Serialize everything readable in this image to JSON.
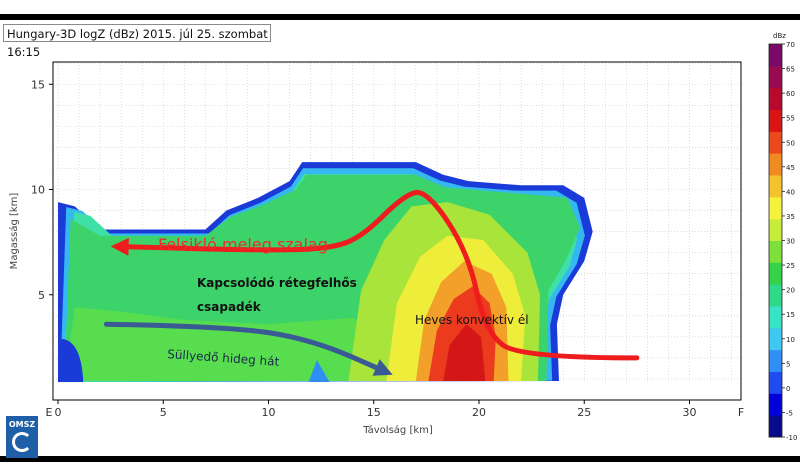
{
  "title": "Hungary-3D logZ (dBz) 2015. júl 25. szombat 16:15",
  "logo_text": "OMSZ",
  "chart_data": {
    "type": "heatmap",
    "xlabel": "Távolság [km]",
    "ylabel": "Magasság [km]",
    "xlim": [
      0,
      32
    ],
    "ylim": [
      0,
      16
    ],
    "x_ticks": [
      "0",
      "5",
      "10",
      "15",
      "20",
      "25",
      "30"
    ],
    "x_end_labels": {
      "left": "E",
      "right": "F"
    },
    "y_ticks": [
      "5",
      "10",
      "15"
    ],
    "grid": true,
    "colorbar": {
      "unit": "dBz",
      "ticks": [
        "-10",
        "-5",
        "0",
        "5",
        "10",
        "15",
        "20",
        "25",
        "30",
        "35",
        "40",
        "45",
        "50",
        "55",
        "60",
        "65",
        "70"
      ],
      "colors": [
        "#0a0a8c",
        "#0000d8",
        "#1e4cf0",
        "#2f8ff5",
        "#3fc8f2",
        "#38e4c8",
        "#2fd98a",
        "#35d34a",
        "#7ee03a",
        "#c8ec3a",
        "#f4f23a",
        "#f4c22c",
        "#f08a22",
        "#ea4a1c",
        "#d81414",
        "#b80a2c",
        "#9a0a50",
        "#7a0a68"
      ]
    },
    "echo_top_km": [
      [
        0,
        9.4
      ],
      [
        0.8,
        9.2
      ],
      [
        2,
        8.1
      ],
      [
        4,
        8.1
      ],
      [
        7,
        8.1
      ],
      [
        8,
        9.0
      ],
      [
        9.5,
        9.6
      ],
      [
        11,
        10.4
      ],
      [
        11.6,
        11.3
      ],
      [
        17,
        11.3
      ],
      [
        18.3,
        10.7
      ],
      [
        19.5,
        10.4
      ],
      [
        22,
        10.2
      ],
      [
        24,
        10.2
      ],
      [
        25,
        9.6
      ],
      [
        25.4,
        8.0
      ],
      [
        25,
        6.6
      ],
      [
        24,
        5.0
      ],
      [
        23.7,
        3.6
      ],
      [
        23.8,
        0.9
      ]
    ],
    "annotations": [
      {
        "text": "Felsikló meleg szalag",
        "color": "#ee2b2b"
      },
      {
        "text": "Kapcsolódó rétegfelhős",
        "color": "#111111"
      },
      {
        "text": "csapadék",
        "color": "#111111"
      },
      {
        "text": "Heves konvektív él",
        "color": "#111111"
      },
      {
        "text": "Süllyedő hideg hát",
        "color": "#1a2a4a"
      }
    ],
    "arrows": [
      {
        "name": "warm-conveyor-arrow",
        "color": "#ee1c1c",
        "points": [
          [
            27.5,
            2.0
          ],
          [
            22,
            2.0
          ],
          [
            20.3,
            3.2
          ],
          [
            19.5,
            7.0
          ],
          [
            17.5,
            10.0
          ],
          [
            16.4,
            9.7
          ],
          [
            14.5,
            7.8
          ],
          [
            13,
            7.2
          ],
          [
            10,
            7.1
          ],
          [
            2.5,
            7.3
          ]
        ]
      },
      {
        "name": "cold-dry-arrow",
        "color": "#3a5a96",
        "points": [
          [
            2.3,
            3.6
          ],
          [
            8,
            3.5
          ],
          [
            12,
            2.9
          ],
          [
            15.9,
            1.2
          ]
        ]
      }
    ]
  }
}
